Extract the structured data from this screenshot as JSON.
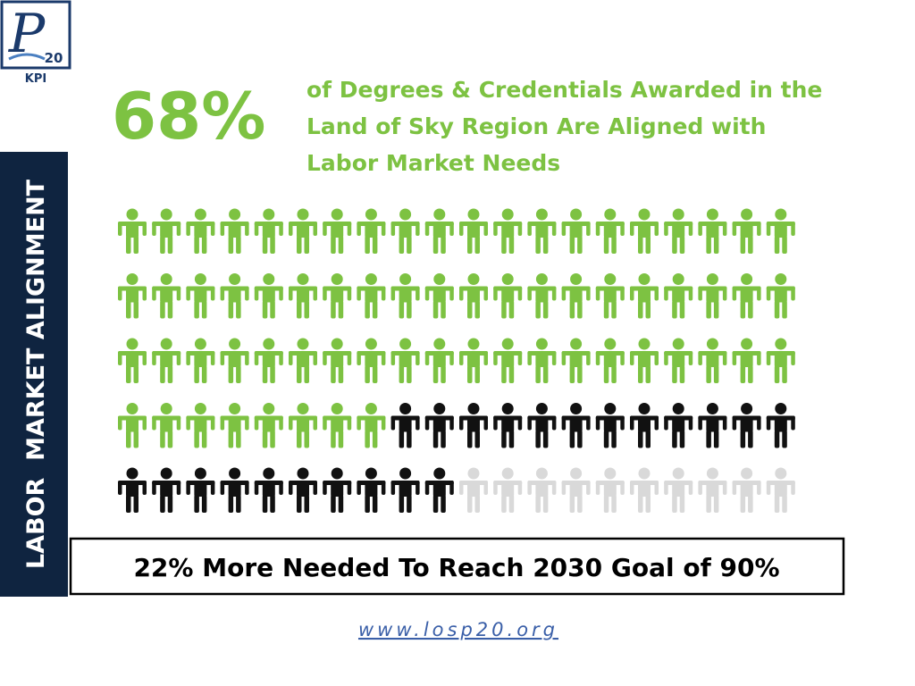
{
  "logo": {
    "number": "20",
    "label": "KPI"
  },
  "side_label": "LABOR  MARKET ALIGNMENT",
  "chart_data": {
    "type": "pictogram",
    "headline": "68%",
    "title_lines": [
      "of Degrees & Credentials Awarded in the",
      "Land of Sky Region Are Aligned with",
      "Labor Market Needs"
    ],
    "series": [
      {
        "color": "#7dc242",
        "values": [
          68
        ]
      },
      {
        "color": "#111111",
        "values": [
          22
        ]
      },
      {
        "color": "#d9d9d9",
        "values": [
          10
        ]
      }
    ],
    "callout": "22% More Needed To Reach 2030 Goal of 90%"
  },
  "footer": {
    "url": "www.losp20.org"
  }
}
